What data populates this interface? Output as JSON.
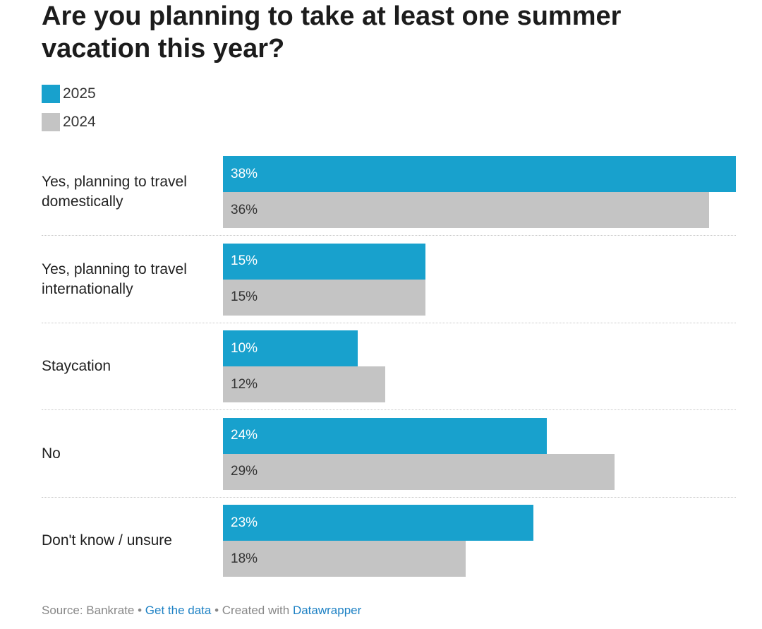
{
  "chart_data": {
    "type": "bar",
    "orientation": "horizontal",
    "title": "Are you planning to take at least one summer vacation this year?",
    "categories": [
      "Yes, planning to travel domestically",
      "Yes, planning to travel internationally",
      "Staycation",
      "No",
      "Don't know / unsure"
    ],
    "series": [
      {
        "name": "2025",
        "color": "#18a1cd",
        "values": [
          38,
          15,
          10,
          24,
          23
        ],
        "labels": [
          "38%",
          "15%",
          "10%",
          "24%",
          "23%"
        ]
      },
      {
        "name": "2024",
        "color": "#c4c4c4",
        "values": [
          36,
          15,
          12,
          29,
          18
        ],
        "labels": [
          "36%",
          "15%",
          "12%",
          "29%",
          "18%"
        ]
      }
    ],
    "xlim": [
      0,
      38
    ],
    "value_suffix": "%",
    "legend_position": "top-left",
    "grid": false
  },
  "footer": {
    "source_text": "Source: Bankrate",
    "separator": "•",
    "get_data_link": "Get the data",
    "created_with_text": "Created with",
    "datawrapper_link": "Datawrapper"
  }
}
